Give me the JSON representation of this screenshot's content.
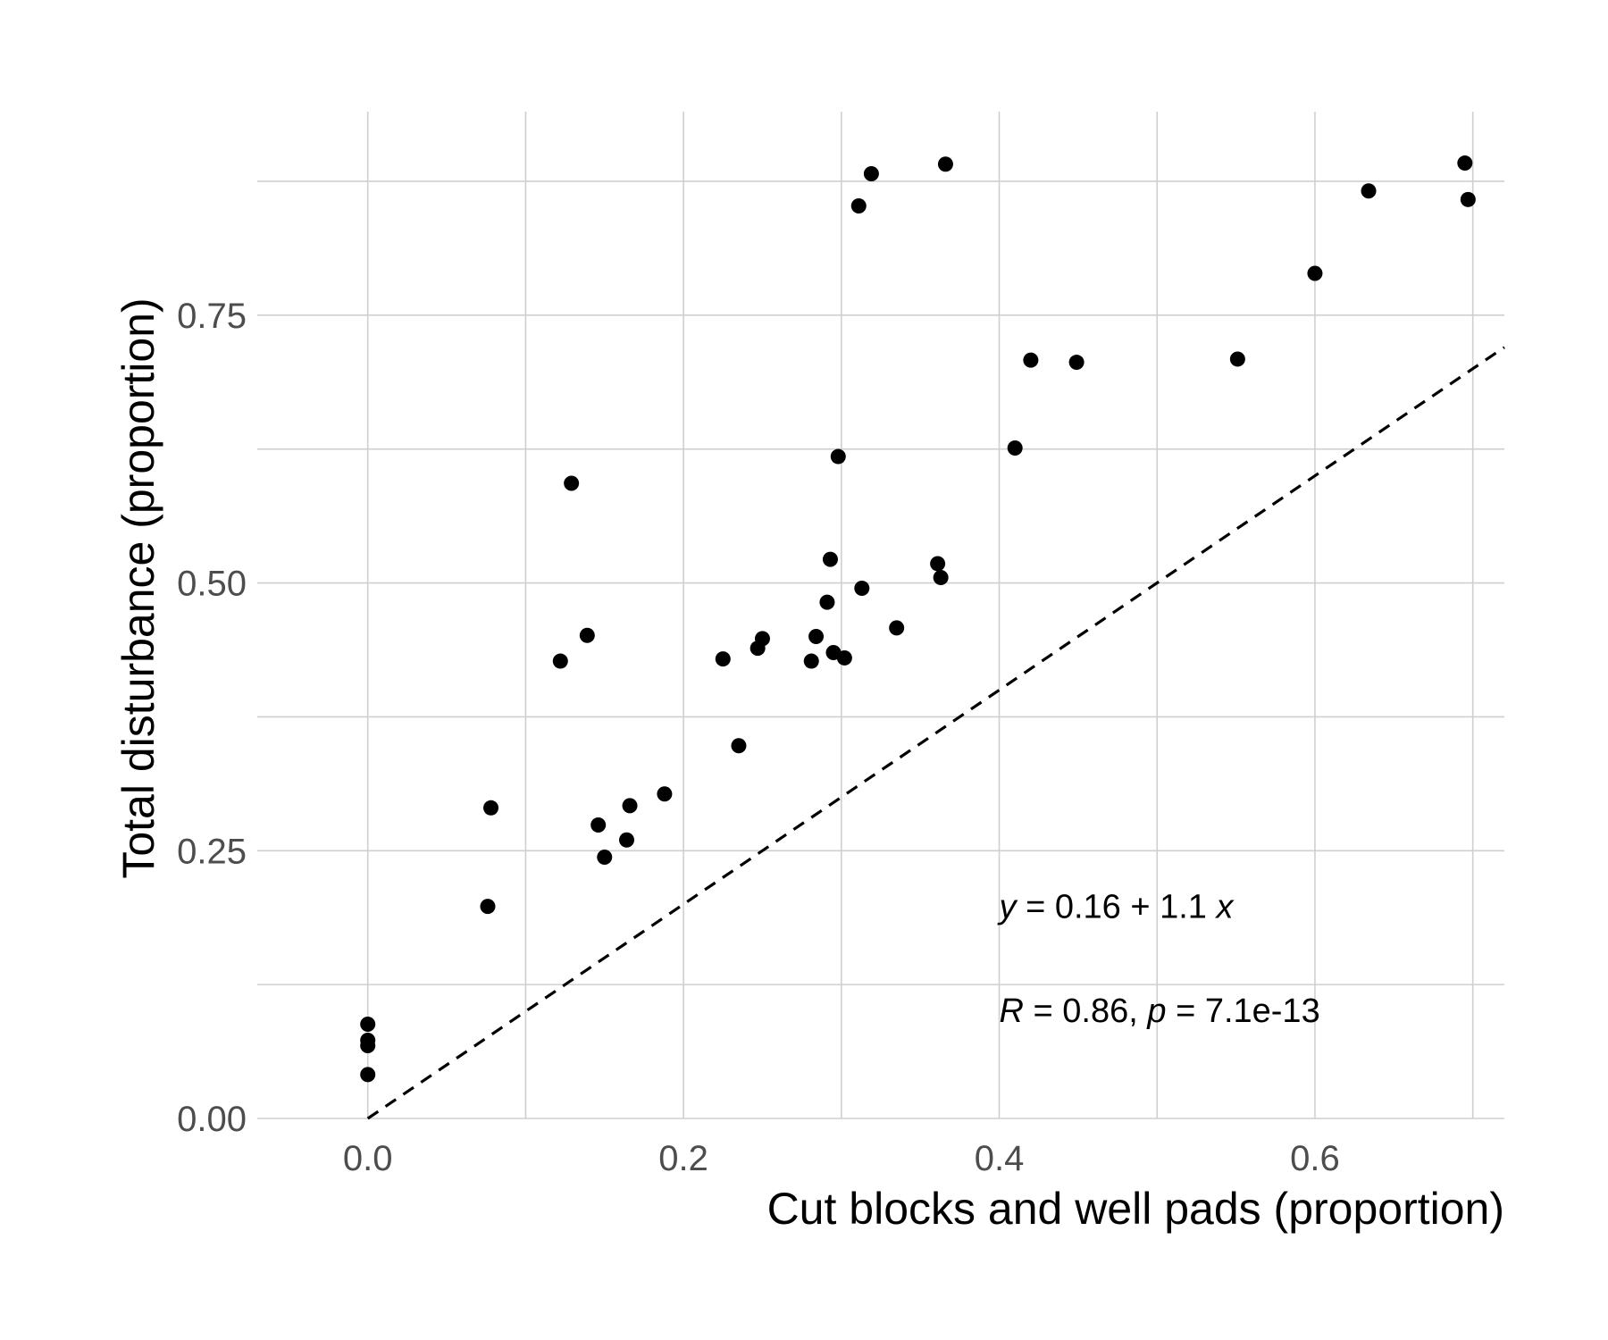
{
  "chart_data": {
    "type": "scatter",
    "xlabel": "Cut blocks and well pads (proportion)",
    "ylabel": "Total disturbance (proportion)",
    "xlim": [
      -0.07,
      0.72
    ],
    "ylim": [
      0.0,
      0.94
    ],
    "x_ticks": [
      "0.0",
      "0.2",
      "0.4",
      "0.6"
    ],
    "x_tick_values": [
      0.0,
      0.2,
      0.4,
      0.6
    ],
    "y_ticks": [
      "0.00",
      "0.25",
      "0.50",
      "0.75"
    ],
    "y_tick_values": [
      0.0,
      0.25,
      0.5,
      0.75
    ],
    "grid": true,
    "reference_line": {
      "style": "dashed",
      "intercept": 0,
      "slope": 1
    },
    "annotations": {
      "equation": {
        "y_var": "y",
        "middle": " = 0.16 + 1.1 ",
        "x_var": "x"
      },
      "stats": {
        "r_var": "R",
        "r_text": " = 0.86, ",
        "p_var": "p",
        "p_text": " = 7.1e-13"
      }
    },
    "points": [
      {
        "x": 0.0,
        "y": 0.088
      },
      {
        "x": 0.0,
        "y": 0.073
      },
      {
        "x": 0.0,
        "y": 0.068
      },
      {
        "x": 0.0,
        "y": 0.041
      },
      {
        "x": 0.076,
        "y": 0.198
      },
      {
        "x": 0.078,
        "y": 0.29
      },
      {
        "x": 0.122,
        "y": 0.427
      },
      {
        "x": 0.129,
        "y": 0.593
      },
      {
        "x": 0.139,
        "y": 0.451
      },
      {
        "x": 0.146,
        "y": 0.274
      },
      {
        "x": 0.15,
        "y": 0.244
      },
      {
        "x": 0.164,
        "y": 0.26
      },
      {
        "x": 0.166,
        "y": 0.292
      },
      {
        "x": 0.188,
        "y": 0.303
      },
      {
        "x": 0.225,
        "y": 0.429
      },
      {
        "x": 0.235,
        "y": 0.348
      },
      {
        "x": 0.247,
        "y": 0.439
      },
      {
        "x": 0.25,
        "y": 0.448
      },
      {
        "x": 0.281,
        "y": 0.427
      },
      {
        "x": 0.284,
        "y": 0.45
      },
      {
        "x": 0.291,
        "y": 0.482
      },
      {
        "x": 0.293,
        "y": 0.522
      },
      {
        "x": 0.295,
        "y": 0.435
      },
      {
        "x": 0.298,
        "y": 0.618
      },
      {
        "x": 0.302,
        "y": 0.43
      },
      {
        "x": 0.311,
        "y": 0.852
      },
      {
        "x": 0.313,
        "y": 0.495
      },
      {
        "x": 0.319,
        "y": 0.882
      },
      {
        "x": 0.335,
        "y": 0.458
      },
      {
        "x": 0.361,
        "y": 0.518
      },
      {
        "x": 0.363,
        "y": 0.505
      },
      {
        "x": 0.366,
        "y": 0.891
      },
      {
        "x": 0.41,
        "y": 0.626
      },
      {
        "x": 0.42,
        "y": 0.708
      },
      {
        "x": 0.449,
        "y": 0.706
      },
      {
        "x": 0.551,
        "y": 0.709
      },
      {
        "x": 0.6,
        "y": 0.789
      },
      {
        "x": 0.634,
        "y": 0.866
      },
      {
        "x": 0.695,
        "y": 0.892
      },
      {
        "x": 0.697,
        "y": 0.858
      }
    ]
  }
}
